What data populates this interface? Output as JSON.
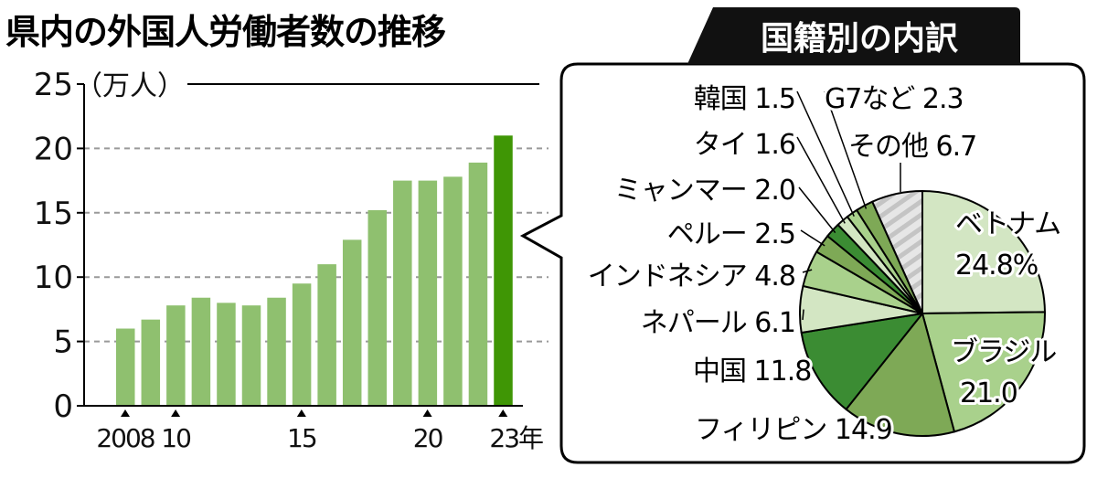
{
  "chart_data": [
    {
      "type": "bar",
      "title": "県内の外国人労働者数の推移",
      "ylabel": "（万人）",
      "x": [
        2008,
        2009,
        2010,
        2011,
        2012,
        2013,
        2014,
        2015,
        2016,
        2017,
        2018,
        2019,
        2020,
        2021,
        2022,
        2023
      ],
      "values": [
        6.0,
        6.7,
        7.8,
        8.4,
        8.0,
        7.8,
        8.4,
        9.5,
        11.0,
        12.9,
        15.2,
        17.5,
        17.5,
        17.8,
        18.9,
        21.0
      ],
      "ylim": [
        0,
        25
      ],
      "yticks": [
        "0",
        "5",
        "10",
        "15",
        "20",
        "25"
      ],
      "xtick_labels": [
        {
          "x": 2008,
          "label": "2008"
        },
        {
          "x": 2010,
          "label": "10"
        },
        {
          "x": 2015,
          "label": "15"
        },
        {
          "x": 2020,
          "label": "20"
        },
        {
          "x": 2023,
          "label": "23年"
        }
      ],
      "grid": true,
      "colors": {
        "bar": "#8fc06f",
        "highlight": "#3f9605",
        "grid": "#999999"
      }
    },
    {
      "type": "pie",
      "title": "国籍別の内訳",
      "unit": "%",
      "slices": [
        {
          "label": "ベトナム",
          "value": 24.8,
          "text": "24.8%",
          "color": "#d3e6c3"
        },
        {
          "label": "ブラジル",
          "value": 21.0,
          "text": "21.0",
          "color": "#a9d18c"
        },
        {
          "label": "フィリピン",
          "value": 14.9,
          "text": "14.9",
          "color": "#7ea956"
        },
        {
          "label": "中国",
          "value": 11.8,
          "text": "11.8",
          "color": "#3b8c33"
        },
        {
          "label": "ネパール",
          "value": 6.1,
          "text": "6.1",
          "color": "#d3e6c3"
        },
        {
          "label": "インドネシア",
          "value": 4.8,
          "text": "4.8",
          "color": "#a9d18c"
        },
        {
          "label": "ペルー",
          "value": 2.5,
          "text": "2.5",
          "color": "#7ea956"
        },
        {
          "label": "ミャンマー",
          "value": 2.0,
          "text": "2.0",
          "color": "#3b8c33"
        },
        {
          "label": "タイ",
          "value": 1.6,
          "text": "1.6",
          "color": "#d3e6c3"
        },
        {
          "label": "韓国",
          "value": 1.5,
          "text": "1.5",
          "color": "#a9d18c"
        },
        {
          "label": "G7など",
          "value": 2.3,
          "text": "2.3",
          "color": "#7ea956"
        },
        {
          "label": "その他",
          "value": 6.7,
          "text": "6.7",
          "color": "hatched-gray"
        }
      ]
    }
  ]
}
